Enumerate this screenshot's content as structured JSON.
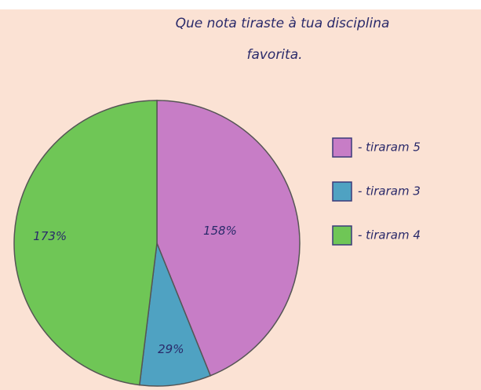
{
  "chart_data": {
    "type": "pie",
    "title": "Que nota tiraste à tua disciplina favorita.",
    "categories": [
      "- tiraram 5",
      "- tiraram 3",
      "- tiraram 4"
    ],
    "values": [
      158,
      29,
      173
    ],
    "value_labels": [
      "158%",
      "29%",
      "173%"
    ],
    "colors": [
      "#c77dc6",
      "#4fa2c2",
      "#6fc656"
    ],
    "legend": "right"
  }
}
